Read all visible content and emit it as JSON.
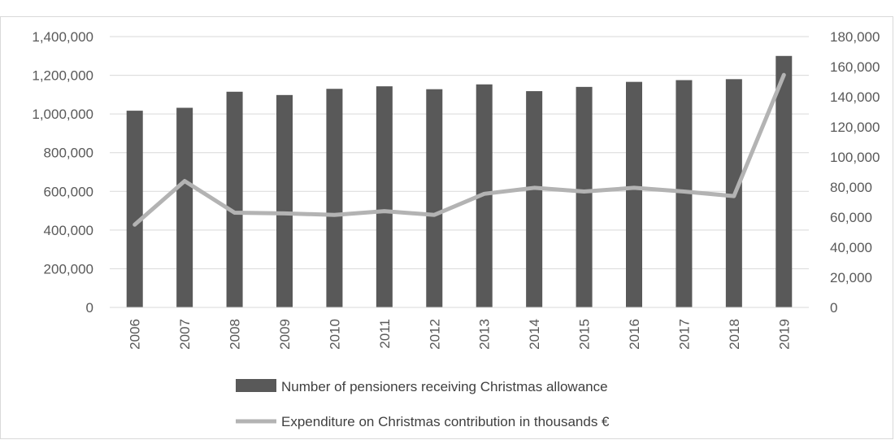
{
  "chart_data": {
    "type": "bar",
    "title": "",
    "categories": [
      "2006",
      "2007",
      "2008",
      "2009",
      "2010",
      "2011",
      "2012",
      "2013",
      "2014",
      "2015",
      "2016",
      "2017",
      "2018",
      "2019"
    ],
    "series": [
      {
        "name": "Number of pensioners receiving Christmas allowance",
        "type": "bar",
        "axis": "left",
        "color": "#595959",
        "values": [
          1017000,
          1032000,
          1115000,
          1098000,
          1130000,
          1143000,
          1128000,
          1153000,
          1118000,
          1140000,
          1166000,
          1175000,
          1180000,
          1300000
        ]
      },
      {
        "name": "Expenditure on Christmas contribution in thousands €",
        "type": "line",
        "axis": "right",
        "color": "#b3b3b3",
        "values": [
          55000,
          84000,
          63000,
          62500,
          61500,
          64000,
          61500,
          75500,
          79500,
          77000,
          79500,
          77000,
          74000,
          154500
        ]
      }
    ],
    "y_left": {
      "min": 0,
      "max": 1400000,
      "ticks": [
        0,
        200000,
        400000,
        600000,
        800000,
        1000000,
        1200000,
        1400000
      ],
      "tick_labels": [
        "0",
        "200,000",
        "400,000",
        "600,000",
        "800,000",
        "1,000,000",
        "1,200,000",
        "1,400,000"
      ]
    },
    "y_right": {
      "min": 0,
      "max": 180000,
      "ticks": [
        0,
        20000,
        40000,
        60000,
        80000,
        100000,
        120000,
        140000,
        160000,
        180000
      ],
      "tick_labels": [
        "0",
        "20,000",
        "40,000",
        "60,000",
        "80,000",
        "100,000",
        "120,000",
        "140,000",
        "160,000",
        "180,000"
      ]
    },
    "xlabel": "",
    "ylabel": "",
    "grid": true,
    "legend_position": "bottom"
  }
}
